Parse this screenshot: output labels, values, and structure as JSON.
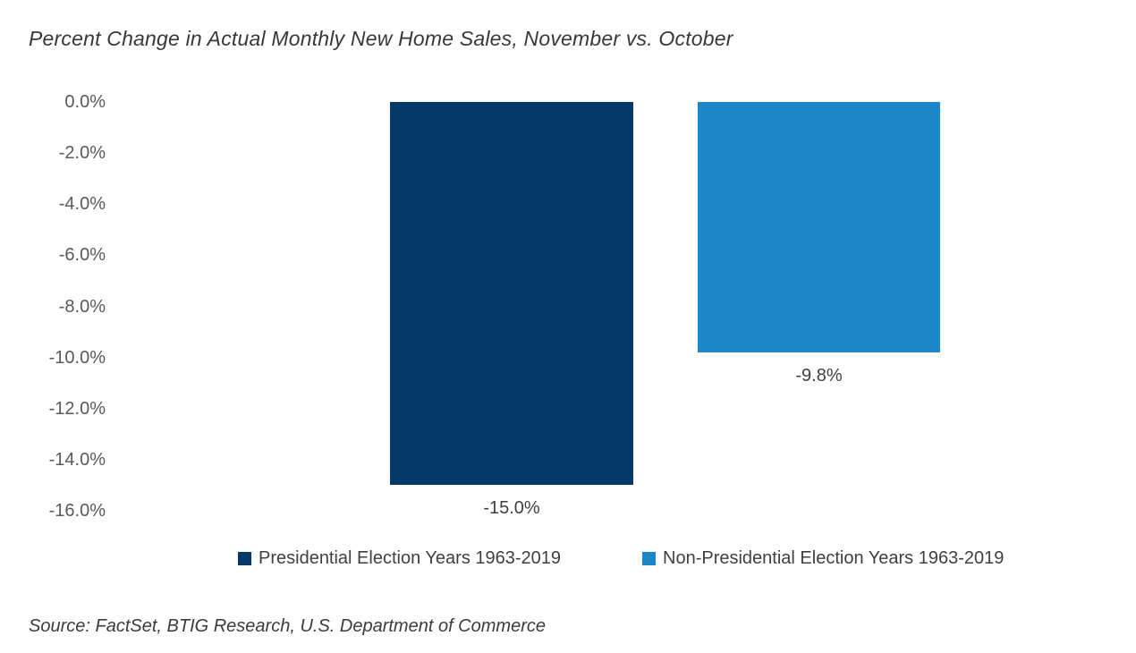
{
  "source": "Source: FactSet, BTIG Research, U.S. Department of Commerce",
  "colors": {
    "bar_presidential": "#05396a",
    "bar_non_presidential": "#1b86c8",
    "title_text": "#383838",
    "axis_text": "#595959",
    "data_label_text": "#404040",
    "background": "#ffffff"
  },
  "chart_data": {
    "type": "bar",
    "title": "Percent Change in Actual Monthly New Home Sales, November vs. October",
    "xlabel": "",
    "ylabel": "",
    "categories": [
      "Presidential Election Years 1963-2019",
      "Non-Presidential Election Years 1963-2019"
    ],
    "series": [
      {
        "name": "Presidential Election Years 1963-2019",
        "value": -15.0,
        "data_label": "-15.0%",
        "color": "#05396a"
      },
      {
        "name": "Non-Presidential Election Years 1963-2019",
        "value": -9.8,
        "data_label": "-9.8%",
        "color": "#1b86c8"
      }
    ],
    "y_axis": {
      "min": -16,
      "max": 0,
      "ticks": [
        {
          "value": 0,
          "label": "0.0%"
        },
        {
          "value": -2,
          "label": "-2.0%"
        },
        {
          "value": -4,
          "label": "-4.0%"
        },
        {
          "value": -6,
          "label": "-6.0%"
        },
        {
          "value": -8,
          "label": "-8.0%"
        },
        {
          "value": -10,
          "label": "-10.0%"
        },
        {
          "value": -12,
          "label": "-12.0%"
        },
        {
          "value": -14,
          "label": "-14.0%"
        },
        {
          "value": -16,
          "label": "-16.0%"
        }
      ]
    },
    "grid": false,
    "legend_position": "bottom"
  }
}
